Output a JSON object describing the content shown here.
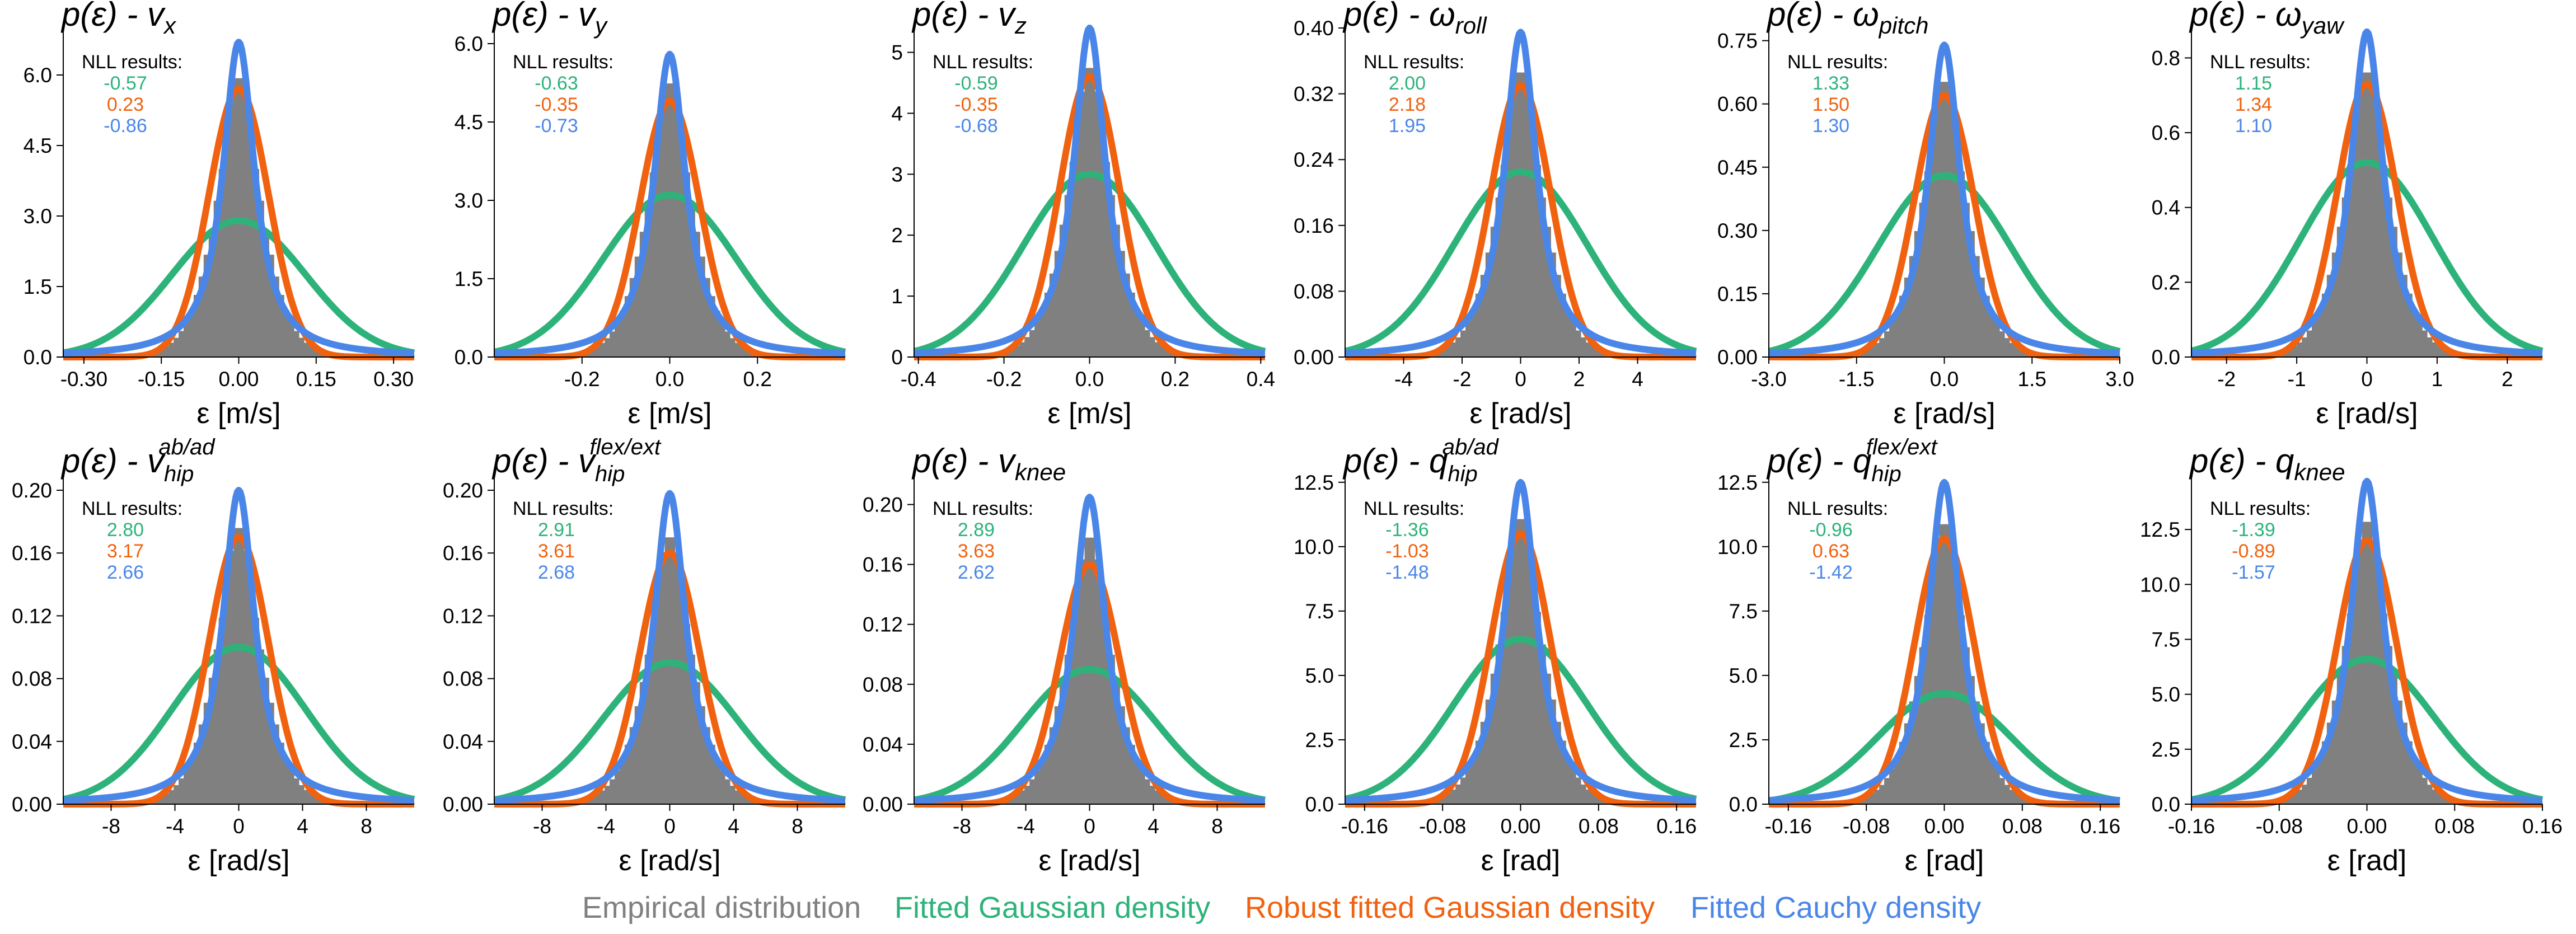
{
  "legend": {
    "empirical": "Empirical distribution",
    "gaussian": "Fitted Gaussian density",
    "robust": "Robust fitted Gaussian density",
    "cauchy": "Fitted Cauchy density"
  },
  "colors": {
    "empirical": "#808080",
    "gaussian": "#2db37a",
    "robust": "#f0620f",
    "cauchy": "#4a86e8"
  },
  "nll_label": "NLL results:",
  "chart_data": [
    {
      "type": "histogram",
      "title": {
        "pre": "p(ε) - v",
        "sub": "x",
        "sup": ""
      },
      "xlabel": "ε [m/s]",
      "xlim": [
        -0.34,
        0.34
      ],
      "xticks": [
        "-0.30",
        "-0.15",
        "0.00",
        "0.15",
        "0.30"
      ],
      "xtick_values": [
        -0.3,
        -0.15,
        0.0,
        0.15,
        0.3
      ],
      "ylim": [
        0,
        7.0
      ],
      "yticks": [
        "0.0",
        "1.5",
        "3.0",
        "4.5",
        "6.0"
      ],
      "ytick_values": [
        0,
        1.5,
        3.0,
        4.5,
        6.0
      ],
      "peaks": {
        "gaussian": 2.9,
        "robust": 5.7,
        "cauchy": 6.7,
        "empirical": 6.0
      },
      "nll": {
        "gaussian": "-0.57",
        "robust": "0.23",
        "cauchy": "-0.86"
      }
    },
    {
      "type": "histogram",
      "title": {
        "pre": "p(ε) - v",
        "sub": "y",
        "sup": ""
      },
      "xlabel": "ε [m/s]",
      "xlim": [
        -0.4,
        0.4
      ],
      "xticks": [
        "-0.2",
        "0.0",
        "0.2"
      ],
      "xtick_values": [
        -0.2,
        0.0,
        0.2
      ],
      "ylim": [
        0,
        6.3
      ],
      "yticks": [
        "0.0",
        "1.5",
        "3.0",
        "4.5",
        "6.0"
      ],
      "ytick_values": [
        0,
        1.5,
        3.0,
        4.5,
        6.0
      ],
      "peaks": {
        "gaussian": 3.1,
        "robust": 4.9,
        "cauchy": 5.8,
        "empirical": 5.3
      },
      "nll": {
        "gaussian": "-0.63",
        "robust": "-0.35",
        "cauchy": "-0.73"
      }
    },
    {
      "type": "histogram",
      "title": {
        "pre": "p(ε) - v",
        "sub": "z",
        "sup": ""
      },
      "xlabel": "ε [m/s]",
      "xlim": [
        -0.41,
        0.41
      ],
      "xticks": [
        "-0.4",
        "-0.2",
        "0.0",
        "0.2",
        "0.4"
      ],
      "xtick_values": [
        -0.4,
        -0.2,
        0.0,
        0.2,
        0.4
      ],
      "ylim": [
        0,
        5.4
      ],
      "yticks": [
        "0",
        "1",
        "2",
        "3",
        "4",
        "5"
      ],
      "ytick_values": [
        0,
        1,
        2,
        3,
        4,
        5
      ],
      "peaks": {
        "gaussian": 3.0,
        "robust": 4.6,
        "cauchy": 5.4,
        "empirical": 4.8
      },
      "nll": {
        "gaussian": "-0.59",
        "robust": "-0.35",
        "cauchy": "-0.68"
      }
    },
    {
      "type": "histogram",
      "title": {
        "pre": "p(ε) - ω",
        "sub": "roll",
        "sup": ""
      },
      "xlabel": "ε [rad/s]",
      "xlim": [
        -6,
        6
      ],
      "xticks": [
        "-4",
        "-2",
        "0",
        "2",
        "4"
      ],
      "xtick_values": [
        -4,
        -2,
        0,
        2,
        4
      ],
      "ylim": [
        0,
        0.4
      ],
      "yticks": [
        "0.00",
        "0.08",
        "0.16",
        "0.24",
        "0.32",
        "0.40"
      ],
      "ytick_values": [
        0,
        0.08,
        0.16,
        0.24,
        0.32,
        0.4
      ],
      "peaks": {
        "gaussian": 0.225,
        "robust": 0.33,
        "cauchy": 0.395,
        "empirical": 0.35
      },
      "nll": {
        "gaussian": "2.00",
        "robust": "2.18",
        "cauchy": "1.95"
      }
    },
    {
      "type": "histogram",
      "title": {
        "pre": "p(ε) - ω",
        "sub": "pitch",
        "sup": ""
      },
      "xlabel": "ε [rad/s]",
      "xlim": [
        -3.0,
        3.0
      ],
      "xticks": [
        "-3.0",
        "-1.5",
        "0.0",
        "1.5",
        "3.0"
      ],
      "xtick_values": [
        -3.0,
        -1.5,
        0.0,
        1.5,
        3.0
      ],
      "ylim": [
        0,
        0.78
      ],
      "yticks": [
        "0.00",
        "0.15",
        "0.30",
        "0.45",
        "0.60",
        "0.75"
      ],
      "ytick_values": [
        0,
        0.15,
        0.3,
        0.45,
        0.6,
        0.75
      ],
      "peaks": {
        "gaussian": 0.43,
        "robust": 0.62,
        "cauchy": 0.74,
        "empirical": 0.66
      },
      "nll": {
        "gaussian": "1.33",
        "robust": "1.50",
        "cauchy": "1.30"
      }
    },
    {
      "type": "histogram",
      "title": {
        "pre": "p(ε) - ω",
        "sub": "yaw",
        "sup": ""
      },
      "xlabel": "ε [rad/s]",
      "xlim": [
        -2.5,
        2.5
      ],
      "xticks": [
        "-2",
        "-1",
        "0",
        "1",
        "2"
      ],
      "xtick_values": [
        -2,
        -1,
        0,
        1,
        2
      ],
      "ylim": [
        0,
        0.88
      ],
      "yticks": [
        "0.0",
        "0.2",
        "0.4",
        "0.6",
        "0.8"
      ],
      "ytick_values": [
        0,
        0.2,
        0.4,
        0.6,
        0.8
      ],
      "peaks": {
        "gaussian": 0.52,
        "robust": 0.73,
        "cauchy": 0.87,
        "empirical": 0.77
      },
      "nll": {
        "gaussian": "1.15",
        "robust": "1.34",
        "cauchy": "1.10"
      }
    },
    {
      "type": "histogram",
      "title": {
        "pre": "p(ε) - v",
        "sub": "hip",
        "sup": "ab/ad"
      },
      "xlabel": "ε [rad/s]",
      "xlim": [
        -11,
        11
      ],
      "xticks": [
        "-8",
        "-4",
        "0",
        "4",
        "8"
      ],
      "xtick_values": [
        -8,
        -4,
        0,
        4,
        8
      ],
      "ylim": [
        0,
        0.21
      ],
      "yticks": [
        "0.00",
        "0.04",
        "0.08",
        "0.12",
        "0.16",
        "0.20"
      ],
      "ytick_values": [
        0,
        0.04,
        0.08,
        0.12,
        0.16,
        0.2
      ],
      "peaks": {
        "gaussian": 0.1,
        "robust": 0.17,
        "cauchy": 0.2,
        "empirical": 0.178
      },
      "nll": {
        "gaussian": "2.80",
        "robust": "3.17",
        "cauchy": "2.66"
      }
    },
    {
      "type": "histogram",
      "title": {
        "pre": "p(ε) - v",
        "sub": "hip",
        "sup": "flex/ext"
      },
      "xlabel": "ε [rad/s]",
      "xlim": [
        -11,
        11
      ],
      "xticks": [
        "-8",
        "-4",
        "0",
        "4",
        "8"
      ],
      "xtick_values": [
        -8,
        -4,
        0,
        4,
        8
      ],
      "ylim": [
        0,
        0.21
      ],
      "yticks": [
        "0.00",
        "0.04",
        "0.08",
        "0.12",
        "0.16",
        "0.20"
      ],
      "ytick_values": [
        0,
        0.04,
        0.08,
        0.12,
        0.16,
        0.2
      ],
      "peaks": {
        "gaussian": 0.09,
        "robust": 0.16,
        "cauchy": 0.198,
        "empirical": 0.172
      },
      "nll": {
        "gaussian": "2.91",
        "robust": "3.61",
        "cauchy": "2.68"
      }
    },
    {
      "type": "histogram",
      "title": {
        "pre": "p(ε) - v",
        "sub": "knee",
        "sup": ""
      },
      "xlabel": "ε [rad/s]",
      "xlim": [
        -11,
        11
      ],
      "xticks": [
        "-8",
        "-4",
        "0",
        "4",
        "8"
      ],
      "xtick_values": [
        -8,
        -4,
        0,
        4,
        8
      ],
      "ylim": [
        0,
        0.22
      ],
      "yticks": [
        "0.00",
        "0.04",
        "0.08",
        "0.12",
        "0.16",
        "0.20"
      ],
      "ytick_values": [
        0,
        0.04,
        0.08,
        0.12,
        0.16,
        0.2
      ],
      "peaks": {
        "gaussian": 0.09,
        "robust": 0.16,
        "cauchy": 0.205,
        "empirical": 0.18
      },
      "nll": {
        "gaussian": "2.89",
        "robust": "3.63",
        "cauchy": "2.62"
      }
    },
    {
      "type": "histogram",
      "title": {
        "pre": "p(ε) - q",
        "sub": "hip",
        "sup": "ab/ad"
      },
      "xlabel": "ε [rad]",
      "xlim": [
        -0.18,
        0.18
      ],
      "xticks": [
        "-0.16",
        "-0.08",
        "0.00",
        "0.08",
        "0.16"
      ],
      "xtick_values": [
        -0.16,
        -0.08,
        0.0,
        0.08,
        0.16
      ],
      "ylim": [
        0,
        12.8
      ],
      "yticks": [
        "0.0",
        "2.5",
        "5.0",
        "7.5",
        "10.0",
        "12.5"
      ],
      "ytick_values": [
        0,
        2.5,
        5.0,
        7.5,
        10.0,
        12.5
      ],
      "peaks": {
        "gaussian": 6.4,
        "robust": 10.5,
        "cauchy": 12.5,
        "empirical": 11.2
      },
      "nll": {
        "gaussian": "-1.36",
        "robust": "-1.03",
        "cauchy": "-1.48"
      }
    },
    {
      "type": "histogram",
      "title": {
        "pre": "p(ε) - q",
        "sub": "hip",
        "sup": "flex/ext"
      },
      "xlabel": "ε [rad]",
      "xlim": [
        -0.18,
        0.18
      ],
      "xticks": [
        "-0.16",
        "-0.08",
        "0.00",
        "0.08",
        "0.16"
      ],
      "xtick_values": [
        -0.16,
        -0.08,
        0.0,
        0.08,
        0.16
      ],
      "ylim": [
        0,
        12.8
      ],
      "yticks": [
        "0.0",
        "2.5",
        "5.0",
        "7.5",
        "10.0",
        "12.5"
      ],
      "ytick_values": [
        0,
        2.5,
        5.0,
        7.5,
        10.0,
        12.5
      ],
      "peaks": {
        "gaussian": 4.3,
        "robust": 10.3,
        "cauchy": 12.5,
        "empirical": 11.0
      },
      "nll": {
        "gaussian": "-0.96",
        "robust": "0.63",
        "cauchy": "-1.42"
      }
    },
    {
      "type": "histogram",
      "title": {
        "pre": "p(ε) - q",
        "sub": "knee",
        "sup": ""
      },
      "xlabel": "ε [rad]",
      "xlim": [
        -0.16,
        0.16
      ],
      "xticks": [
        "-0.16",
        "-0.08",
        "0.00",
        "0.08",
        "0.16"
      ],
      "xtick_values": [
        -0.16,
        -0.08,
        0.0,
        0.08,
        0.16
      ],
      "ylim": [
        0,
        15.0
      ],
      "yticks": [
        "0.0",
        "2.5",
        "5.0",
        "7.5",
        "10.0",
        "12.5"
      ],
      "ytick_values": [
        0,
        2.5,
        5.0,
        7.5,
        10.0,
        12.5
      ],
      "peaks": {
        "gaussian": 6.6,
        "robust": 12.0,
        "cauchy": 14.7,
        "empirical": 13.0
      },
      "nll": {
        "gaussian": "-1.39",
        "robust": "-0.89",
        "cauchy": "-1.57"
      }
    }
  ]
}
